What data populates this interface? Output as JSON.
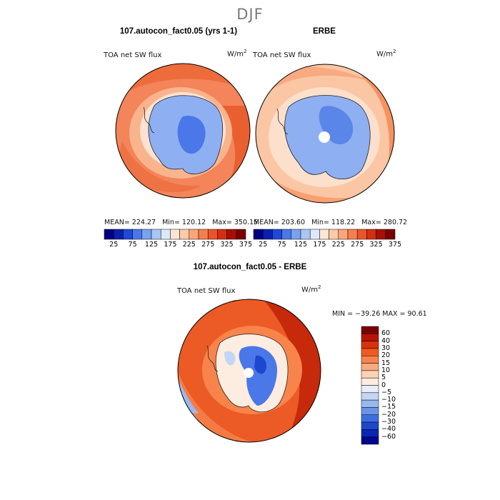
{
  "season_title": "DJF",
  "units_text": "W/m",
  "units_sup": "2",
  "panels": [
    {
      "title": "107.autocon_fact0.05 (yrs 1-1)",
      "field": "TOA net SW flux",
      "mean_text": "MEAN= 224.27",
      "min_text": "Min= 120.12",
      "max_text": "Max= 350.15"
    },
    {
      "title": "ERBE",
      "field": "TOA net SW flux",
      "mean_text": "MEAN= 203.60",
      "min_text": "Min= 118.22",
      "max_text": "Max= 280.72"
    },
    {
      "title": "107.autocon_fact0.05 - ERBE",
      "field": "TOA net SW flux",
      "minmax_text": "MIN = −39.26 MAX =  90.61"
    }
  ],
  "colorbar_top": {
    "colors": [
      "#000080",
      "#0a1fb0",
      "#1f48d8",
      "#4a78e8",
      "#7aa2f0",
      "#aac6f6",
      "#dce8fb",
      "#fde6d6",
      "#fccaa8",
      "#fba678",
      "#f77e4e",
      "#ec5428",
      "#d42f10",
      "#a81006",
      "#7a0000"
    ],
    "tick_labels": [
      "25",
      "75",
      "125",
      "175",
      "225",
      "275",
      "325",
      "375"
    ]
  },
  "colorbar_diff": {
    "colors": [
      "#7a0000",
      "#b81406",
      "#d8320c",
      "#f05a20",
      "#f8844c",
      "#fbaa80",
      "#fcd2b6",
      "#fdece0",
      "#e6eefc",
      "#c4d6f6",
      "#9ab8f0",
      "#6a94e8",
      "#3c6ee0",
      "#1c48d0",
      "#0c26b4",
      "#000890"
    ],
    "labels": [
      "60",
      "40",
      "30",
      "20",
      "15",
      "10",
      "5",
      "0",
      "−5",
      "−10",
      "−15",
      "−20",
      "−30",
      "−40",
      "−60"
    ]
  },
  "chart_data": [
    {
      "type": "heatmap",
      "title": "107.autocon_fact0.05 (yrs 1-1)",
      "variable": "TOA net SW flux",
      "units": "W/m2",
      "mean": 224.27,
      "min": 120.12,
      "max": 350.15,
      "color_levels": [
        25,
        75,
        125,
        175,
        225,
        275,
        325,
        375
      ]
    },
    {
      "type": "heatmap",
      "title": "ERBE",
      "variable": "TOA net SW flux",
      "units": "W/m2",
      "mean": 203.6,
      "min": 118.22,
      "max": 280.72,
      "color_levels": [
        25,
        75,
        125,
        175,
        225,
        275,
        325,
        375
      ]
    },
    {
      "type": "heatmap",
      "title": "107.autocon_fact0.05 - ERBE",
      "variable": "TOA net SW flux",
      "units": "W/m2",
      "min": -39.26,
      "max": 90.61,
      "color_levels": [
        -60,
        -40,
        -30,
        -20,
        -15,
        -10,
        -5,
        0,
        5,
        10,
        15,
        20,
        30,
        40,
        60
      ]
    }
  ]
}
